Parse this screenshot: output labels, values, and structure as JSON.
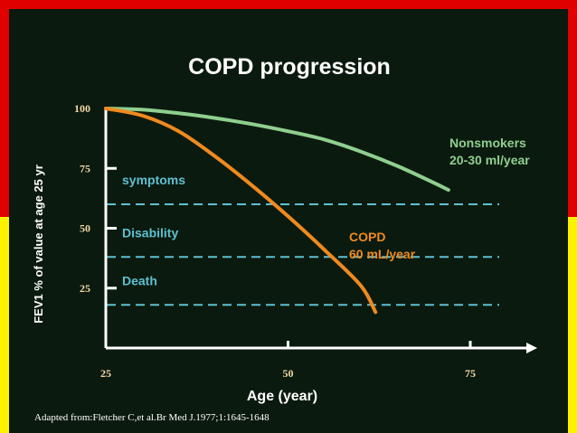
{
  "colors": {
    "frame_top": "#e00000",
    "frame_bottom": "#fff200",
    "background": "#0b1a0e",
    "axis": "#ffffff",
    "threshold": "#5ec0d2",
    "nonsmokers": "#8fcf8f",
    "copd": "#f08a1e"
  },
  "chart_data": {
    "type": "line",
    "title": "COPD progression",
    "xlabel": "Age (year)",
    "ylabel": "FEV1 % of value at age 25 yr",
    "x_ticks": [
      "25",
      "50",
      "75"
    ],
    "y_ticks": [
      "100",
      "75",
      "50",
      "25"
    ],
    "xlim": [
      25,
      75
    ],
    "ylim": [
      0,
      100
    ],
    "series": [
      {
        "label_lines": [
          "Nonsmokers",
          "20-30 ml/year"
        ],
        "color": "#8fcf8f",
        "x": [
          25,
          30,
          35,
          40,
          45,
          50,
          55,
          60,
          65,
          70,
          72
        ],
        "y": [
          100,
          99.5,
          98,
          96,
          93.5,
          90.5,
          87,
          82,
          76,
          69,
          66
        ]
      },
      {
        "label_lines": [
          "COPD",
          "60 mL/year"
        ],
        "color": "#f08a1e",
        "x": [
          25,
          30,
          35,
          40,
          45,
          50,
          55,
          60,
          62
        ],
        "y": [
          100,
          97,
          90.5,
          80,
          68,
          55,
          41,
          26,
          15
        ]
      }
    ],
    "thresholds": [
      {
        "label": "symptoms",
        "y": 60
      },
      {
        "label": "Disability",
        "y": 38
      },
      {
        "label": "Death",
        "y": 18
      }
    ]
  },
  "footer": {
    "source": "Adapted from:Fletcher C,et al.Br Med J.1977;1:1645-1648"
  }
}
